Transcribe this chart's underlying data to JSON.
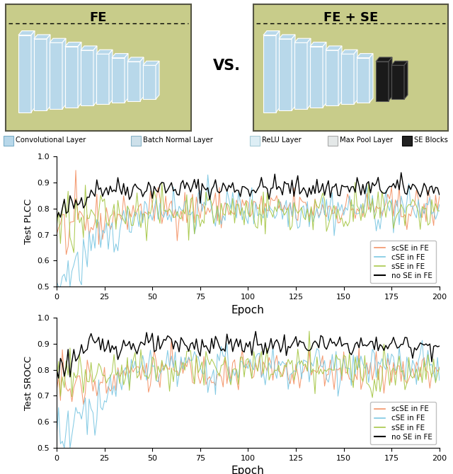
{
  "title_fe": "FE",
  "title_fe_se": "FE + SE",
  "vs_text": "VS.",
  "legend_items": [
    {
      "label": "Convolutional Layer",
      "color": "#b8d8ea",
      "edgecolor": "#7aaec8"
    },
    {
      "label": "Batch Normal Layer",
      "color": "#cde0ea",
      "edgecolor": "#8ab4c8"
    },
    {
      "label": "ReLU Layer",
      "color": "#ddeef5",
      "edgecolor": "#a8ccd8"
    },
    {
      "label": "Max Pool Layer",
      "color": "#e4e8e8",
      "edgecolor": "#aaaaaa"
    },
    {
      "label": "SE Blocks",
      "color": "#222222",
      "edgecolor": "#000000"
    }
  ],
  "plot1_ylabel": "Test PLCC",
  "plot2_ylabel": "Test SROCC",
  "xlabel": "Epoch",
  "ylim": [
    0.5,
    1.0
  ],
  "yticks": [
    0.5,
    0.6,
    0.7,
    0.8,
    0.9,
    1.0
  ],
  "xticks": [
    0,
    25,
    50,
    75,
    100,
    125,
    150,
    175,
    200
  ],
  "line_colors": {
    "scSE": "#f4956a",
    "cSE": "#7ec8e3",
    "sSE": "#a8c84a",
    "noSE": "#000000"
  },
  "line_labels": {
    "scSE": "scSE in FE",
    "cSE": "cSE in FE",
    "sSE": "sSE in FE",
    "noSE": "no SE in FE"
  },
  "box_bg": "#c8cc8a",
  "box_edge": "#555544"
}
